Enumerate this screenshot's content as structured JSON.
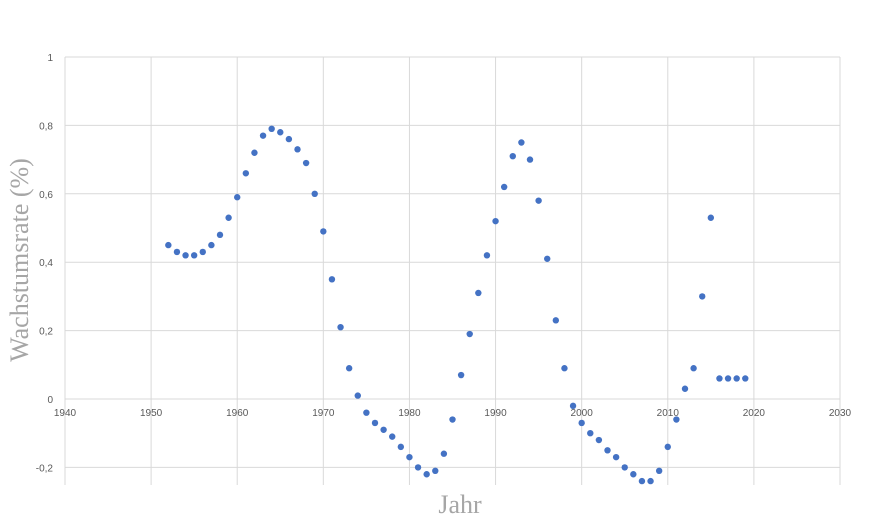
{
  "chart_data": {
    "type": "scatter",
    "xlabel": "Jahr",
    "ylabel": "Wachstumsrate (%)",
    "xlim": [
      1940,
      2030
    ],
    "ylim": [
      -0.25,
      1
    ],
    "x_ticks": [
      "1940",
      "1950",
      "1960",
      "1970",
      "1980",
      "1990",
      "2000",
      "2010",
      "2020",
      "2030"
    ],
    "y_ticks": [
      "-0,2",
      "0",
      "0,2",
      "0,4",
      "0,6",
      "0,8",
      "1"
    ],
    "grid": true,
    "marker_color": "#4472c4",
    "x": [
      1952,
      1953,
      1954,
      1955,
      1956,
      1957,
      1958,
      1959,
      1960,
      1961,
      1962,
      1963,
      1964,
      1965,
      1966,
      1967,
      1968,
      1969,
      1970,
      1971,
      1972,
      1973,
      1974,
      1975,
      1976,
      1977,
      1978,
      1979,
      1980,
      1981,
      1982,
      1983,
      1984,
      1985,
      1986,
      1987,
      1988,
      1989,
      1990,
      1991,
      1992,
      1993,
      1994,
      1995,
      1996,
      1997,
      1998,
      1999,
      2000,
      2001,
      2002,
      2003,
      2004,
      2005,
      2006,
      2007,
      2008,
      2009,
      2010,
      2011,
      2012,
      2013,
      2014,
      2015,
      2016,
      2017,
      2018,
      2019
    ],
    "y": [
      0.45,
      0.43,
      0.42,
      0.42,
      0.43,
      0.45,
      0.48,
      0.53,
      0.59,
      0.66,
      0.72,
      0.77,
      0.79,
      0.78,
      0.76,
      0.73,
      0.69,
      0.6,
      0.49,
      0.35,
      0.21,
      0.09,
      0.01,
      -0.04,
      -0.07,
      -0.09,
      -0.11,
      -0.14,
      -0.17,
      -0.2,
      -0.22,
      -0.21,
      -0.16,
      -0.06,
      0.07,
      0.19,
      0.31,
      0.42,
      0.52,
      0.62,
      0.71,
      0.75,
      0.7,
      0.58,
      0.41,
      0.23,
      0.09,
      -0.02,
      -0.07,
      -0.1,
      -0.12,
      -0.15,
      -0.17,
      -0.2,
      -0.22,
      -0.24,
      -0.24,
      -0.21,
      -0.14,
      -0.06,
      0.03,
      0.09,
      0.3,
      0.53,
      0.06,
      0.06,
      0.06,
      0.06
    ]
  }
}
